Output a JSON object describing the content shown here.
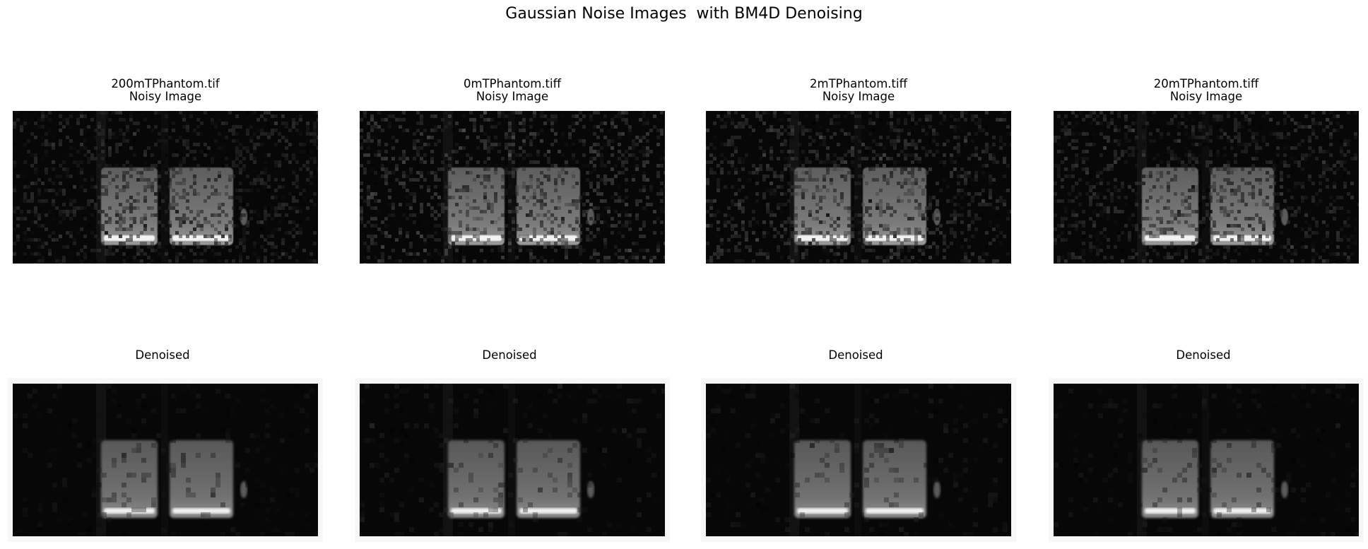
{
  "figure": {
    "title": "Gaussian Noise Images  with BM4D Denoising"
  },
  "panels": [
    {
      "noisy": {
        "file": "200mTPhantom.tif",
        "label": "Noisy Image"
      },
      "denoised": {
        "label": "Denoised"
      }
    },
    {
      "noisy": {
        "file": "0mTPhantom.tiff",
        "label": "Noisy Image"
      },
      "denoised": {
        "label": "Denoised"
      }
    },
    {
      "noisy": {
        "file": "2mTPhantom.tiff",
        "label": "Noisy Image"
      },
      "denoised": {
        "label": "Denoised"
      }
    },
    {
      "noisy": {
        "file": "20mTPhantom.tiff",
        "label": "Noisy Image"
      },
      "denoised": {
        "label": "Denoised"
      }
    }
  ],
  "colors": {
    "background": "#ffffff",
    "image_background": "#050505",
    "frame": "#f7f7f7"
  }
}
